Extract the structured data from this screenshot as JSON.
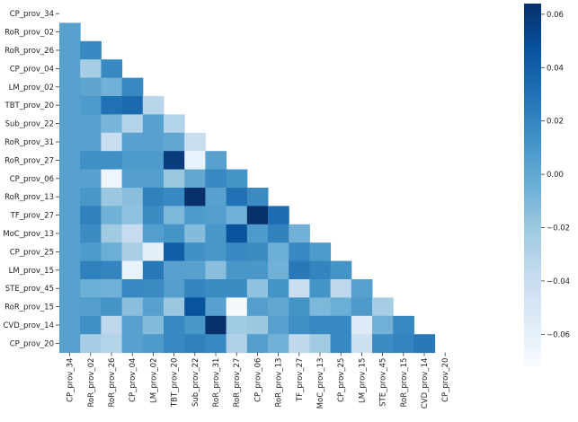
{
  "chart_data": {
    "type": "heatmap",
    "title": "",
    "xlabel": "",
    "ylabel": "",
    "mask": "upper-triangle-including-diagonal",
    "labels": [
      "CP_prov_34",
      "RoR_prov_02",
      "RoR_prov_26",
      "CP_prov_04",
      "LM_prov_02",
      "TBT_prov_20",
      "Sub_prov_22",
      "RoR_prov_31",
      "RoR_prov_27",
      "CP_prov_06",
      "RoR_prov_13",
      "TF_prov_27",
      "MoC_prov_13",
      "CP_prov_25",
      "LM_prov_15",
      "STE_prov_45",
      "RoR_prov_15",
      "CVD_prov_14",
      "CP_prov_20"
    ],
    "matrix": [
      [],
      [
        0.004
      ],
      [
        0.004,
        0.018
      ],
      [
        0.004,
        -0.024,
        0.018
      ],
      [
        0.004,
        0.002,
        -0.006,
        0.018
      ],
      [
        0.004,
        0.008,
        0.03,
        0.034,
        -0.032
      ],
      [
        0.004,
        0.004,
        -0.008,
        -0.03,
        0.004,
        -0.03
      ],
      [
        0.004,
        0.004,
        -0.04,
        0.004,
        0.004,
        0.0,
        -0.04
      ],
      [
        0.004,
        0.014,
        0.014,
        0.008,
        0.008,
        0.058,
        -0.062,
        0.004
      ],
      [
        0.004,
        0.004,
        -0.066,
        0.006,
        0.006,
        -0.02,
        0.0,
        0.018,
        0.012
      ],
      [
        0.004,
        0.01,
        -0.02,
        -0.014,
        0.022,
        0.018,
        0.064,
        0.004,
        0.03,
        0.016
      ],
      [
        0.004,
        0.022,
        -0.006,
        -0.016,
        0.016,
        -0.01,
        0.008,
        0.006,
        -0.006,
        0.064,
        0.032
      ],
      [
        0.004,
        0.016,
        -0.022,
        -0.038,
        0.006,
        0.012,
        -0.012,
        0.01,
        0.046,
        0.008,
        0.022,
        -0.006
      ],
      [
        0.004,
        0.008,
        -0.004,
        -0.026,
        -0.058,
        0.04,
        0.014,
        0.01,
        0.018,
        0.016,
        -0.004,
        0.018,
        0.008
      ],
      [
        0.004,
        0.022,
        0.02,
        -0.062,
        0.026,
        0.004,
        0.004,
        -0.014,
        0.01,
        0.01,
        -0.006,
        0.026,
        0.02,
        0.012
      ],
      [
        0.004,
        -0.004,
        -0.006,
        0.018,
        0.016,
        0.006,
        0.02,
        0.016,
        0.016,
        -0.016,
        0.012,
        -0.04,
        0.012,
        -0.034,
        0.004
      ],
      [
        0.004,
        0.006,
        0.012,
        -0.014,
        0.004,
        -0.02,
        0.046,
        0.004,
        -0.07,
        0.006,
        0.0,
        0.012,
        -0.01,
        -0.004,
        0.008,
        -0.024
      ],
      [
        0.004,
        0.014,
        -0.034,
        0.004,
        -0.012,
        0.018,
        0.01,
        0.064,
        -0.022,
        -0.02,
        0.004,
        0.014,
        0.018,
        0.018,
        -0.054,
        -0.006,
        0.018
      ],
      [
        0.004,
        -0.024,
        -0.03,
        0.004,
        0.008,
        0.018,
        0.022,
        0.018,
        -0.028,
        0.006,
        -0.006,
        -0.036,
        -0.022,
        0.018,
        -0.044,
        0.016,
        0.02,
        0.026
      ]
    ],
    "colorbar": {
      "min": -0.072,
      "max": 0.064,
      "ticks": [
        0.06,
        0.04,
        0.02,
        0.0,
        -0.02,
        -0.04,
        -0.06
      ],
      "tick_labels": [
        "0.06",
        "0.04",
        "0.02",
        "0.00",
        "−0.02",
        "−0.04",
        "−0.06"
      ],
      "colormap": "Blues",
      "colors": [
        "#f7fbff",
        "#deebf7",
        "#c6dbef",
        "#9ecae1",
        "#6baed6",
        "#4292c6",
        "#2171b5",
        "#08519c",
        "#08306b"
      ]
    }
  }
}
